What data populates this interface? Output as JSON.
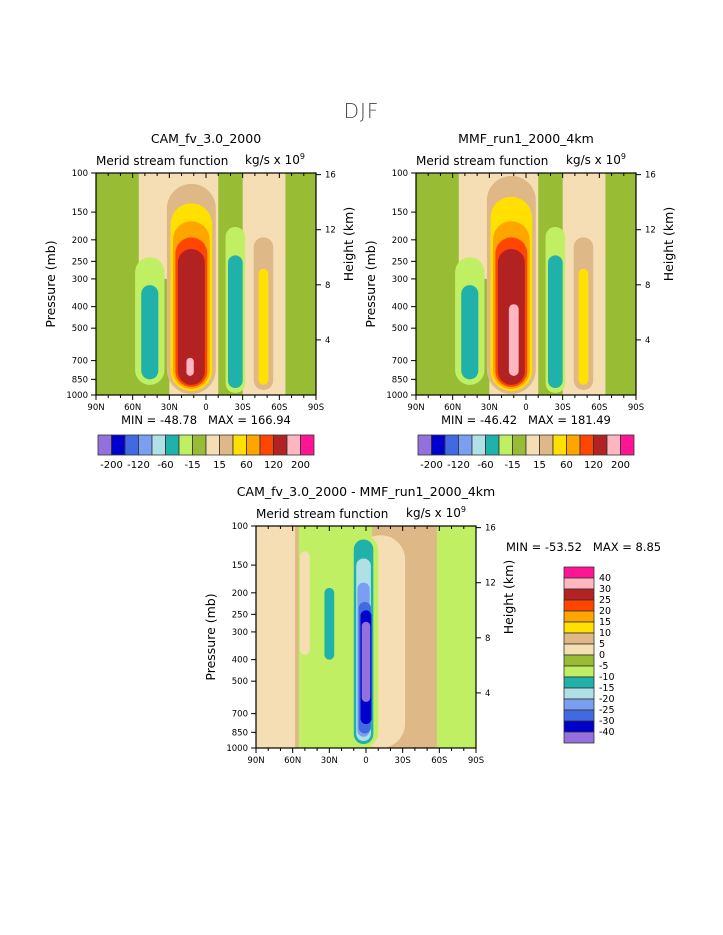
{
  "page": {
    "title": "DJF"
  },
  "chart_data": [
    {
      "type": "heatmap",
      "title": "CAM_fv_3.0_2000",
      "subtitle_left": "Merid stream function",
      "subtitle_right": "kg/s x 10",
      "subtitle_right_exp": "9",
      "ylabel": "Pressure (mb)",
      "ylabel_right": "Height (km)",
      "x_ticks": [
        "90N",
        "60N",
        "30N",
        "0",
        "30S",
        "60S",
        "90S"
      ],
      "x_range": [
        90,
        -90
      ],
      "y_ticks": [
        "100",
        "150",
        "200",
        "250",
        "300",
        "400",
        "500",
        "700",
        "850",
        "1000"
      ],
      "y_range_mb": [
        1000,
        100
      ],
      "y_ticks_right": [
        "16",
        "12",
        "8",
        "4"
      ],
      "min_label": "MIN = -48.78",
      "max_label": "MAX = 166.94",
      "colorbar": {
        "orientation": "horizontal",
        "labels": [
          "-200",
          "-120",
          "-60",
          "-15",
          "15",
          "60",
          "120",
          "200"
        ],
        "levels": [
          -200,
          -160,
          -120,
          -80,
          -60,
          -30,
          -15,
          0,
          15,
          30,
          60,
          80,
          120,
          160,
          200
        ],
        "colors": [
          "#9370db",
          "#0000cd",
          "#4169e1",
          "#7b9ff0",
          "#b0e0e6",
          "#20b2aa",
          "#c0ef63",
          "#98bd35",
          "#f5deb3",
          "#deb887",
          "#ffe000",
          "#ffa500",
          "#ff4500",
          "#b22222",
          "#ffb6c1",
          "#ff1493"
        ]
      },
      "features": [
        {
          "name": "southern-hadley-cell",
          "center_lat": 12,
          "center_p": 700,
          "peak_value": 166.94,
          "sign": "positive"
        },
        {
          "name": "ferrel-cell-nh",
          "center_lat": 46,
          "center_p": 500,
          "peak_value": -48.78,
          "sign": "negative"
        },
        {
          "name": "ferrel-cell-sh",
          "center_lat": -24,
          "center_p": 450,
          "sign": "negative"
        },
        {
          "name": "polar-cell-sh",
          "center_lat": -47,
          "center_p": 450,
          "sign": "positive"
        }
      ]
    },
    {
      "type": "heatmap",
      "title": "MMF_run1_2000_4km",
      "subtitle_left": "Merid stream function",
      "subtitle_right": "kg/s x 10",
      "subtitle_right_exp": "9",
      "ylabel": "Pressure (mb)",
      "ylabel_right": "Height (km)",
      "x_ticks": [
        "90N",
        "60N",
        "30N",
        "0",
        "30S",
        "60S",
        "90S"
      ],
      "x_range": [
        90,
        -90
      ],
      "y_ticks": [
        "100",
        "150",
        "200",
        "250",
        "300",
        "400",
        "500",
        "700",
        "850",
        "1000"
      ],
      "y_range_mb": [
        1000,
        100
      ],
      "y_ticks_right": [
        "16",
        "12",
        "8",
        "4"
      ],
      "min_label": "MIN = -46.42",
      "max_label": "MAX = 181.49",
      "colorbar": {
        "orientation": "horizontal",
        "labels": [
          "-200",
          "-120",
          "-60",
          "-15",
          "15",
          "60",
          "120",
          "200"
        ],
        "levels": [
          -200,
          -160,
          -120,
          -80,
          -60,
          -30,
          -15,
          0,
          15,
          30,
          60,
          80,
          120,
          160,
          200
        ],
        "colors": [
          "#9370db",
          "#0000cd",
          "#4169e1",
          "#7b9ff0",
          "#b0e0e6",
          "#20b2aa",
          "#c0ef63",
          "#98bd35",
          "#f5deb3",
          "#deb887",
          "#ffe000",
          "#ffa500",
          "#ff4500",
          "#b22222",
          "#ffb6c1",
          "#ff1493"
        ]
      },
      "features": [
        {
          "name": "southern-hadley-cell",
          "center_lat": 10,
          "center_p": 500,
          "peak_value": 181.49,
          "sign": "positive"
        },
        {
          "name": "ferrel-cell-nh",
          "center_lat": 46,
          "center_p": 500,
          "peak_value": -46.42,
          "sign": "negative"
        },
        {
          "name": "ferrel-cell-sh",
          "center_lat": -24,
          "center_p": 450,
          "sign": "negative"
        },
        {
          "name": "polar-cell-sh",
          "center_lat": -47,
          "center_p": 450,
          "sign": "positive"
        }
      ]
    },
    {
      "type": "heatmap",
      "title": "CAM_fv_3.0_2000 - MMF_run1_2000_4km",
      "subtitle_left": "Merid stream function",
      "subtitle_right": "kg/s x 10",
      "subtitle_right_exp": "9",
      "ylabel": "Pressure (mb)",
      "ylabel_right": "Height (km)",
      "x_ticks": [
        "90N",
        "60N",
        "30N",
        "0",
        "30S",
        "60S",
        "90S"
      ],
      "x_range": [
        90,
        -90
      ],
      "y_ticks": [
        "100",
        "150",
        "200",
        "250",
        "300",
        "400",
        "500",
        "700",
        "850",
        "1000"
      ],
      "y_range_mb": [
        1000,
        100
      ],
      "y_ticks_right": [
        "16",
        "12",
        "8",
        "4"
      ],
      "min_label": "MIN = -53.52",
      "max_label": "MAX =   8.85",
      "colorbar": {
        "orientation": "vertical",
        "labels": [
          "40",
          "30",
          "25",
          "20",
          "15",
          "10",
          "5",
          "0",
          "-5",
          "-10",
          "-15",
          "-20",
          "-25",
          "-30",
          "-40"
        ],
        "colors": [
          "#ff1493",
          "#ffb6c1",
          "#b22222",
          "#ff4500",
          "#ffa500",
          "#ffe000",
          "#deb887",
          "#f5deb3",
          "#98bd35",
          "#c0ef63",
          "#20b2aa",
          "#b0e0e6",
          "#7b9ff0",
          "#4169e1",
          "#0000cd",
          "#9370db"
        ]
      },
      "features": [
        {
          "name": "equatorial-negative-difference",
          "center_lat": 0,
          "center_p": 400,
          "peak_value": -53.52,
          "sign": "negative"
        }
      ]
    }
  ]
}
